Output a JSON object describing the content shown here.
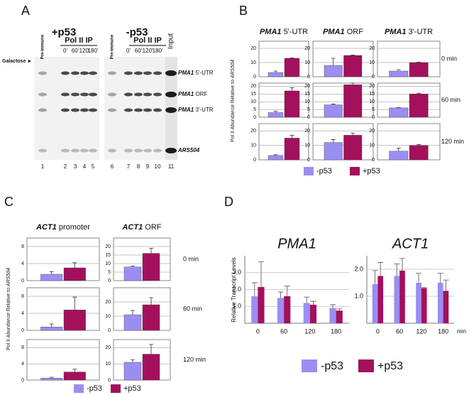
{
  "panel_a": {
    "letter": "A",
    "groups": [
      "+p53",
      "-p53"
    ],
    "pre_immune": "Pre-immune",
    "ip": "Pol II IP",
    "times": [
      "0'",
      "60'",
      "120'",
      "180'"
    ],
    "input": "Input",
    "galactose": "Galactose ►",
    "bands": [
      {
        "gene": "PMA1",
        "region": "5'-UTR"
      },
      {
        "gene": "PMA1",
        "region": "ORF"
      },
      {
        "gene": "PMA1",
        "region": "3'-UTR"
      },
      {
        "gene": "ARS504"
      }
    ],
    "lanes": [
      "1",
      "2",
      "3",
      "4",
      "5",
      "6",
      "7",
      "8",
      "9",
      "10",
      "11"
    ]
  },
  "chart_data": [
    {
      "type": "bar",
      "panel": "B",
      "y_label": "Pol II Abundance Relative to",
      "y_label_gene": "ARS504",
      "series": [
        {
          "name": "-p53",
          "color": "#9b8ef2"
        },
        {
          "name": "+p53",
          "color": "#a3105c"
        }
      ],
      "columns": [
        {
          "gene": "PMA1",
          "region": "5'-UTR"
        },
        {
          "gene": "PMA1",
          "region": "ORF"
        },
        {
          "gene": "PMA1",
          "region": "3'-UTR"
        }
      ],
      "rows": [
        "0 min",
        "60 min",
        "120 min"
      ],
      "cells": [
        {
          "ylim": [
            0,
            25
          ],
          "yticks": [
            0,
            10,
            20
          ],
          "values": [
            3,
            13
          ],
          "errors": [
            1,
            0.3
          ]
        },
        {
          "ylim": [
            0,
            25
          ],
          "yticks": [
            0,
            10,
            20
          ],
          "values": [
            8,
            15
          ],
          "errors": [
            5,
            0.3
          ]
        },
        {
          "ylim": [
            0,
            25
          ],
          "yticks": [
            0,
            10,
            20
          ],
          "values": [
            4,
            10
          ],
          "errors": [
            1,
            0.3
          ]
        },
        {
          "ylim": [
            0,
            22
          ],
          "yticks": [
            0,
            5,
            10,
            15,
            20
          ],
          "values": [
            3,
            17
          ],
          "errors": [
            0.8,
            2
          ]
        },
        {
          "ylim": [
            0,
            22
          ],
          "yticks": [
            0,
            5,
            10,
            15,
            20
          ],
          "values": [
            8,
            21
          ],
          "errors": [
            0.5,
            1
          ]
        },
        {
          "ylim": [
            0,
            22
          ],
          "yticks": [
            0,
            5,
            10,
            15,
            20
          ],
          "values": [
            6,
            15
          ],
          "errors": [
            0.3,
            0.5
          ]
        },
        {
          "ylim": [
            0,
            25
          ],
          "yticks": [
            0,
            10,
            20
          ],
          "values": [
            3,
            15
          ],
          "errors": [
            0.5,
            2
          ]
        },
        {
          "ylim": [
            0,
            25
          ],
          "yticks": [
            0,
            10,
            20
          ],
          "values": [
            12,
            17
          ],
          "errors": [
            2,
            1.5
          ]
        },
        {
          "ylim": [
            0,
            25
          ],
          "yticks": [
            0,
            10,
            20
          ],
          "values": [
            6,
            10
          ],
          "errors": [
            2,
            0.5
          ]
        }
      ]
    },
    {
      "type": "bar",
      "panel": "C",
      "y_label": "Pol II Abundance Relative to",
      "y_label_gene": "ARS504",
      "series": [
        {
          "name": "-p53",
          "color": "#9b8ef2"
        },
        {
          "name": "+p53",
          "color": "#a3105c"
        }
      ],
      "columns": [
        {
          "gene": "ACT1",
          "region": "promoter"
        },
        {
          "gene": "ACT1",
          "region": "ORF"
        }
      ],
      "rows": [
        "0 min",
        "60 min",
        "120 min"
      ],
      "cells": [
        {
          "ylim": [
            0,
            10
          ],
          "yticks": [
            0,
            4,
            8
          ],
          "values": [
            1.5,
            3
          ],
          "errors": [
            0.6,
            1.2
          ]
        },
        {
          "ylim": [
            0,
            25
          ],
          "yticks": [
            0,
            5,
            10,
            15,
            20
          ],
          "values": [
            8,
            16
          ],
          "errors": [
            0.5,
            3
          ]
        },
        {
          "ylim": [
            0,
            10
          ],
          "yticks": [
            0,
            4,
            8
          ],
          "values": [
            0.8,
            4.8
          ],
          "errors": [
            0.7,
            3
          ]
        },
        {
          "ylim": [
            0,
            30
          ],
          "yticks": [
            0,
            10,
            20
          ],
          "values": [
            11,
            18
          ],
          "errors": [
            3,
            5
          ]
        },
        {
          "ylim": [
            0,
            10
          ],
          "yticks": [
            0,
            4,
            8
          ],
          "values": [
            0.5,
            2
          ],
          "errors": [
            0.2,
            0.7
          ]
        },
        {
          "ylim": [
            0,
            25
          ],
          "yticks": [
            0,
            10,
            20
          ],
          "values": [
            11,
            16
          ],
          "errors": [
            1.5,
            6
          ]
        }
      ]
    },
    {
      "type": "bar",
      "panel": "D",
      "y_label": "Relative Transcript Levels",
      "x_unit": "min",
      "series": [
        {
          "name": "-p53",
          "color": "#9b8ef2"
        },
        {
          "name": "+p53",
          "color": "#a3105c"
        }
      ],
      "categories": [
        "0",
        "60",
        "120",
        "180"
      ],
      "charts": [
        {
          "title": "PMA1",
          "ylim": [
            0,
            4
          ],
          "yticks": [
            {
              "value": 1,
              "label": "1.0"
            },
            {
              "value": 2,
              "label": "2.0"
            },
            {
              "value": 3,
              "label": "3.0"
            }
          ],
          "values": [
            [
              1.6,
              1.5,
              1.2,
              0.9
            ],
            [
              2.15,
              1.6,
              1.1,
              0.75
            ]
          ],
          "errors": [
            [
              0.8,
              0.35,
              0.35,
              0.2
            ],
            [
              1.5,
              0.6,
              0.2,
              0.1
            ]
          ]
        },
        {
          "title": "ACT1",
          "ylim": [
            0,
            2.5
          ],
          "yticks": [
            {
              "value": 1,
              "label": "1.0"
            },
            {
              "value": 2,
              "label": "2.0"
            }
          ],
          "values": [
            [
              1.45,
              1.75,
              1.5,
              1.5
            ],
            [
              1.75,
              1.95,
              1.3,
              1.2
            ]
          ],
          "errors": [
            [
              0.5,
              0.45,
              0.35,
              0.35
            ],
            [
              0.5,
              0.45,
              0.02,
              0.4
            ]
          ]
        }
      ]
    }
  ]
}
